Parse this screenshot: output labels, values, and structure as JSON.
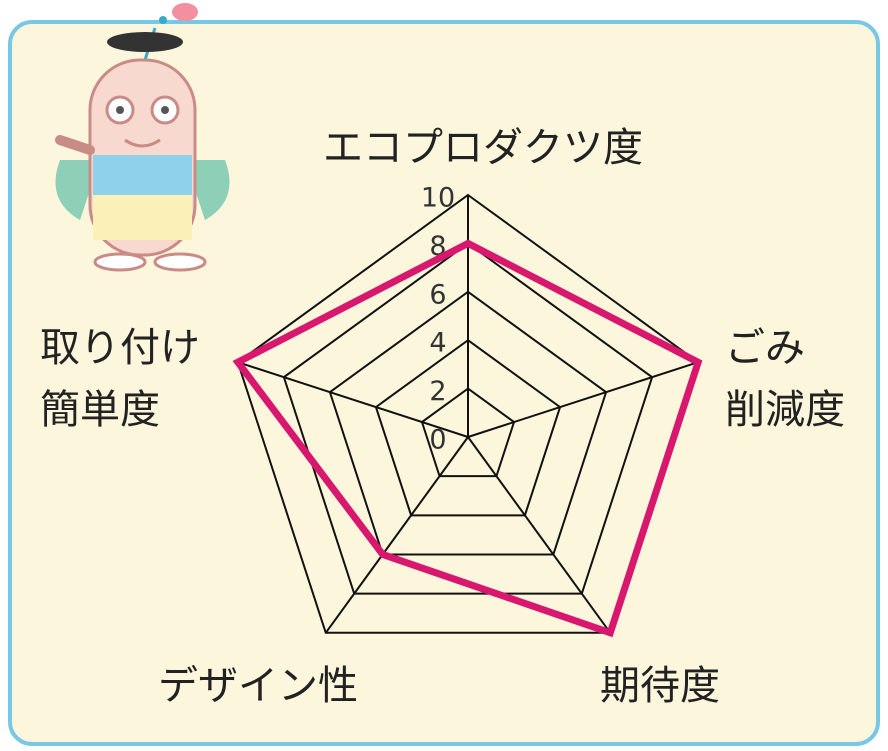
{
  "chart_data": {
    "type": "radar",
    "categories": [
      "エコプロダクツ度",
      "ごみ\n削減度",
      "期待度",
      "デザイン性",
      "取り付け\n簡単度"
    ],
    "values": [
      8,
      10,
      10,
      6,
      10
    ],
    "color": "#d8176f",
    "rlim": [
      0,
      10
    ],
    "rticks": [
      0,
      2,
      4,
      6,
      8,
      10
    ],
    "grid": true
  }
}
